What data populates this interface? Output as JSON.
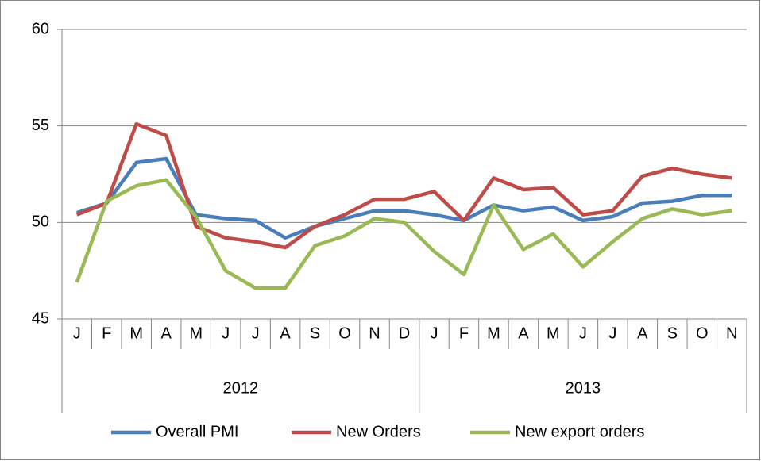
{
  "chart_data": {
    "type": "line",
    "category_groups": [
      {
        "label": "2012",
        "categories": [
          "J",
          "F",
          "M",
          "A",
          "M",
          "J",
          "J",
          "A",
          "S",
          "O",
          "N",
          "D"
        ]
      },
      {
        "label": "2013",
        "categories": [
          "J",
          "F",
          "M",
          "A",
          "M",
          "J",
          "J",
          "A",
          "S",
          "O",
          "N"
        ]
      }
    ],
    "series": [
      {
        "name": "Overall PMI",
        "color": "#4a7ebb",
        "values": [
          50.5,
          51.0,
          53.1,
          53.3,
          50.4,
          50.2,
          50.1,
          49.2,
          49.8,
          50.2,
          50.6,
          50.6,
          50.4,
          50.1,
          50.9,
          50.6,
          50.8,
          50.1,
          50.3,
          51.0,
          51.1,
          51.4,
          51.4
        ]
      },
      {
        "name": "New Orders",
        "color": "#be4b48",
        "values": [
          50.4,
          51.0,
          55.1,
          54.5,
          49.8,
          49.2,
          49.0,
          48.7,
          49.8,
          50.4,
          51.2,
          51.2,
          51.6,
          50.1,
          52.3,
          51.7,
          51.8,
          50.4,
          50.6,
          52.4,
          52.8,
          52.5,
          52.3
        ]
      },
      {
        "name": "New export orders",
        "color": "#98b954",
        "values": [
          46.9,
          51.1,
          51.9,
          52.2,
          50.3,
          47.5,
          46.6,
          46.6,
          48.8,
          49.3,
          50.2,
          50.0,
          48.5,
          47.3,
          50.9,
          48.6,
          49.4,
          47.7,
          49.0,
          50.2,
          50.7,
          50.4,
          50.6
        ]
      }
    ],
    "ylim": [
      45,
      60
    ],
    "yticks": [
      45,
      50,
      55,
      60
    ],
    "grid": true,
    "legend": "bottom"
  }
}
